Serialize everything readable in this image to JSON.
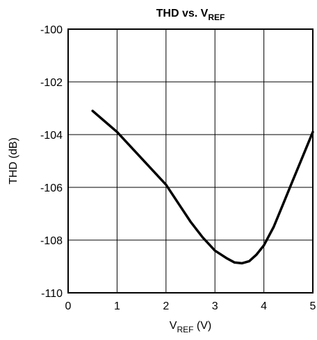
{
  "chart_data": {
    "type": "line",
    "title": {
      "main": "THD vs. V",
      "sub": "REF"
    },
    "xlabel": {
      "main": "V",
      "sub": "REF",
      "tail": " (V)"
    },
    "ylabel": "THD (dB)",
    "xlim": [
      0,
      5
    ],
    "ylim": [
      -110,
      -100
    ],
    "grid": true,
    "x_ticks": [
      0,
      1,
      2,
      3,
      4,
      5
    ],
    "y_ticks": [
      -100,
      -102,
      -104,
      -106,
      -108,
      -110
    ],
    "x_tick_labels": [
      "0",
      "1",
      "2",
      "3",
      "4",
      "5"
    ],
    "y_tick_labels": [
      "-100",
      "-102",
      "-104",
      "-106",
      "-108",
      "-110"
    ],
    "series": [
      {
        "x": [
          0.5,
          0.75,
          1.0,
          1.25,
          1.5,
          1.75,
          2.0,
          2.25,
          2.5,
          2.75,
          3.0,
          3.25,
          3.4,
          3.55,
          3.7,
          3.85,
          4.0,
          4.2,
          4.4,
          4.6,
          4.8,
          5.0
        ],
        "y": [
          -103.1,
          -103.5,
          -103.9,
          -104.4,
          -104.9,
          -105.4,
          -105.9,
          -106.6,
          -107.3,
          -107.9,
          -108.4,
          -108.7,
          -108.85,
          -108.88,
          -108.8,
          -108.55,
          -108.2,
          -107.5,
          -106.6,
          -105.7,
          -104.8,
          -103.9
        ]
      }
    ]
  }
}
